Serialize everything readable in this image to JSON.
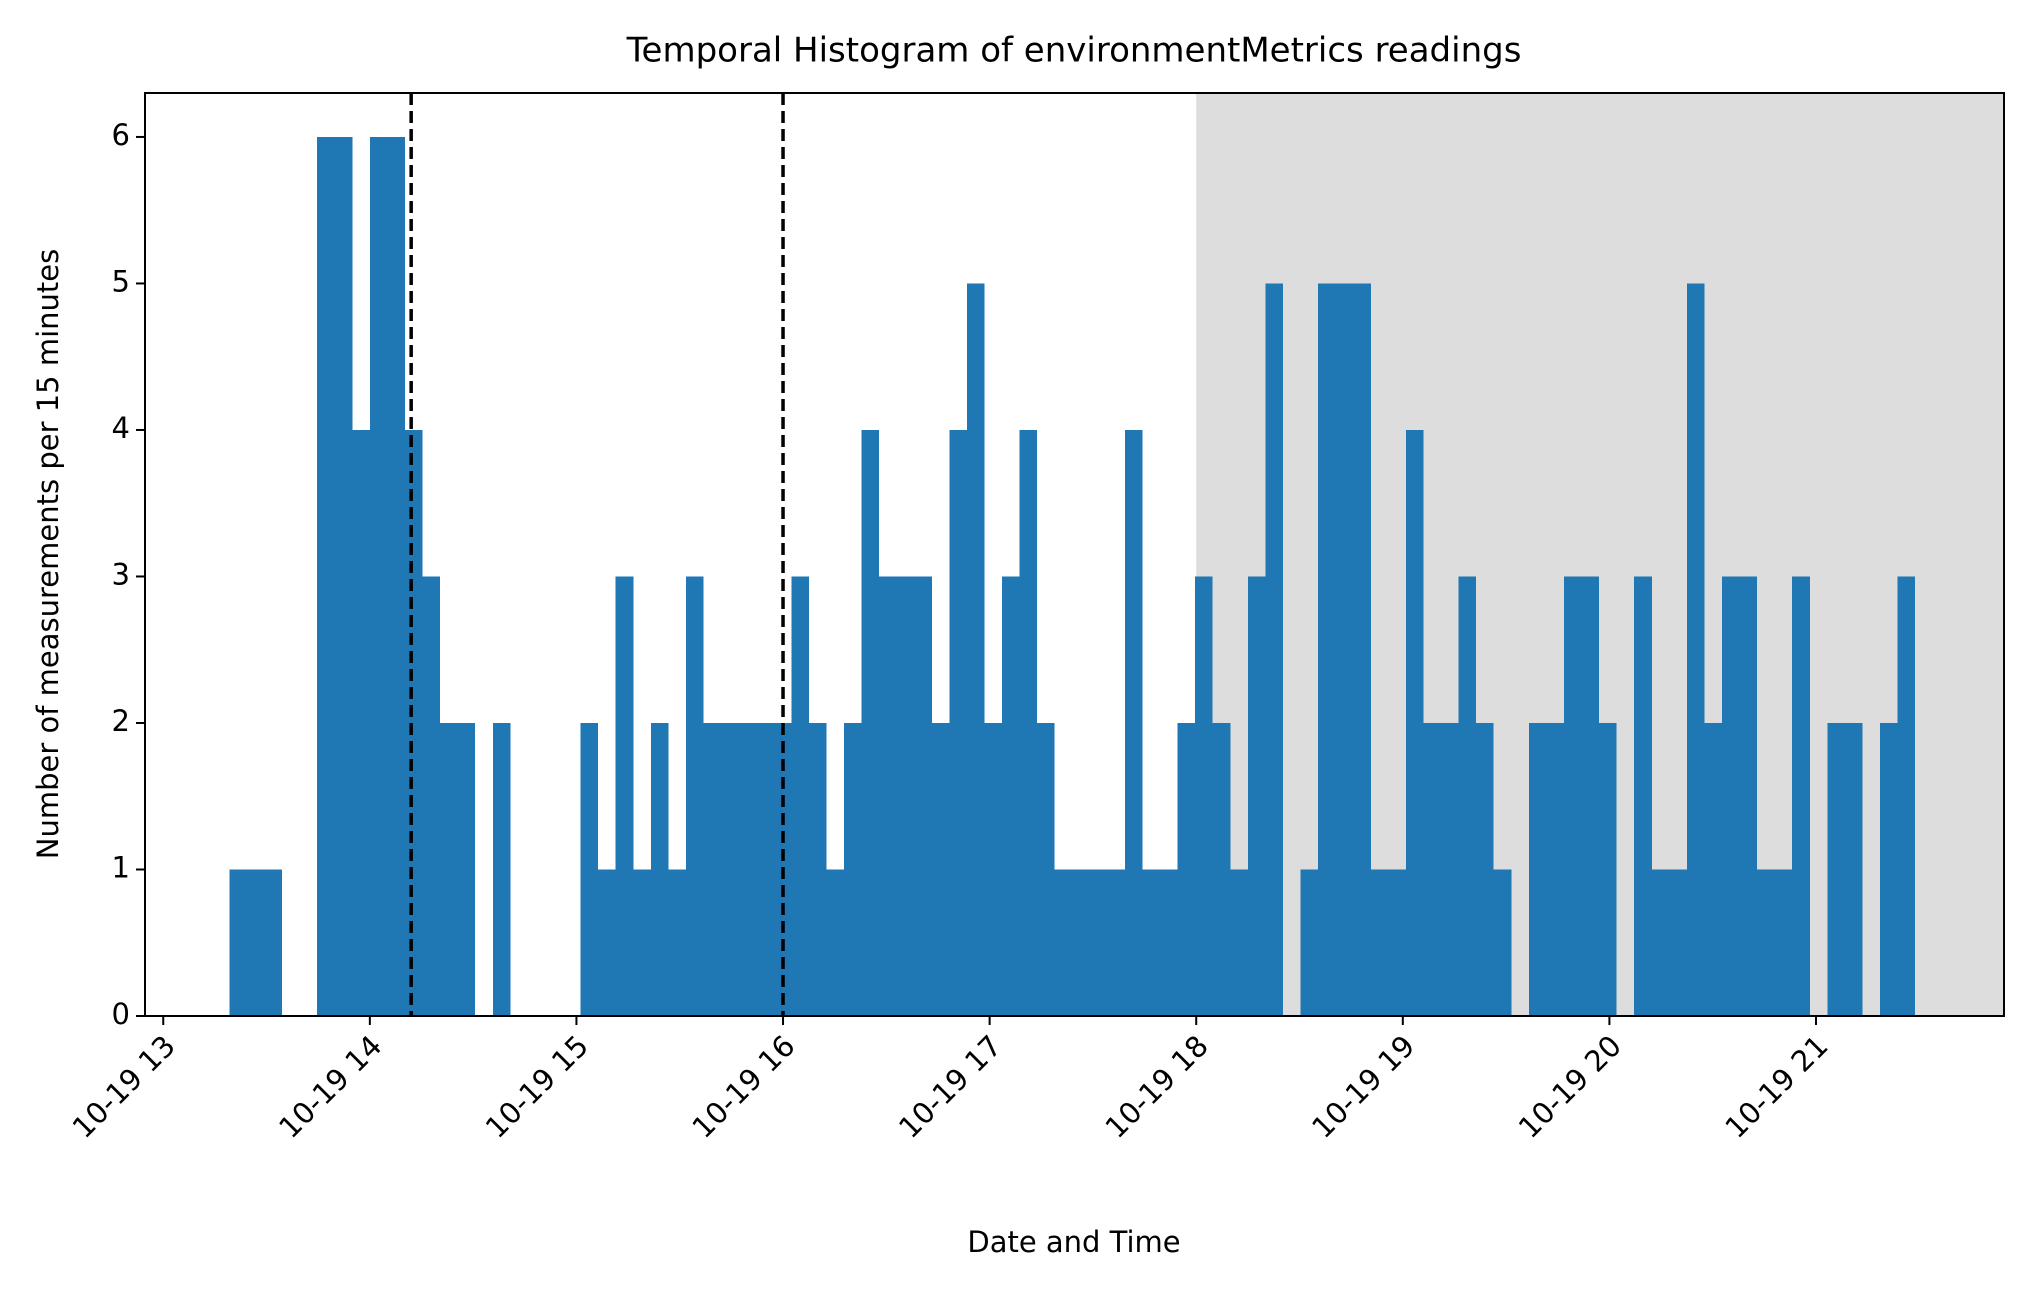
{
  "chart_data": {
    "type": "histogram",
    "title": "Temporal Histogram of environmentMetrics readings",
    "x_label": "Date and Time",
    "y_label": "Number of measurements per 15 minutes",
    "color": "#1f77b4",
    "bins": [
      799.2,
      804.3,
      809.4,
      814.5,
      819.6,
      824.7,
      829.8,
      834.9,
      840,
      845.1,
      850.2,
      855.3,
      860.4,
      865.5,
      870.6,
      875.7,
      880.8,
      885.9,
      891,
      896.1,
      901.2,
      906.3,
      911.4,
      916.5,
      921.6,
      926.7,
      931.8,
      936.9,
      942,
      947.1,
      952.2,
      957.3,
      962.4,
      967.5,
      972.6,
      977.7,
      982.8,
      987.9,
      993,
      998.1,
      1003.2,
      1008.3,
      1013.4,
      1018.5,
      1023.6,
      1028.7,
      1033.8,
      1038.9,
      1044,
      1049.1,
      1054.2,
      1059.3,
      1064.4,
      1069.5,
      1074.6,
      1079.7,
      1084.8,
      1089.9,
      1095,
      1100.1,
      1105.2,
      1110.3,
      1115.4,
      1120.5,
      1125.6,
      1130.7,
      1135.8,
      1140.9,
      1146,
      1151.1,
      1156.2,
      1161.3,
      1166.4,
      1171.5,
      1176.6,
      1181.7,
      1186.8,
      1191.9,
      1197,
      1202.1,
      1207.2,
      1212.3,
      1217.4,
      1222.5,
      1227.6,
      1232.7,
      1237.8,
      1242.9,
      1248,
      1253.1,
      1258.2,
      1263.3,
      1268.4,
      1273.5,
      1278.6,
      1283.7,
      1288.8
    ],
    "values": [
      1,
      1,
      1,
      0,
      0,
      6,
      6,
      4,
      6,
      6,
      4,
      3,
      2,
      2,
      0,
      2,
      0,
      0,
      0,
      0,
      2,
      1,
      3,
      1,
      2,
      1,
      3,
      2,
      2,
      2,
      2,
      2,
      3,
      2,
      1,
      2,
      4,
      3,
      3,
      3,
      2,
      4,
      5,
      2,
      3,
      4,
      2,
      1,
      1,
      1,
      1,
      4,
      1,
      1,
      2,
      3,
      2,
      1,
      3,
      5,
      0,
      1,
      5,
      5,
      5,
      1,
      1,
      4,
      2,
      2,
      3,
      2,
      1,
      0,
      2,
      2,
      3,
      3,
      2,
      0,
      3,
      1,
      1,
      5,
      2,
      3,
      3,
      1,
      1,
      3,
      0,
      2,
      2,
      0,
      2,
      3
    ],
    "xlim": [
      774.7,
      1314.6
    ],
    "xticks": [
      {
        "value": 780,
        "label": "10-19 13"
      },
      {
        "value": 840,
        "label": "10-19 14"
      },
      {
        "value": 900,
        "label": "10-19 15"
      },
      {
        "value": 960,
        "label": "10-19 16"
      },
      {
        "value": 1020,
        "label": "10-19 17"
      },
      {
        "value": 1080,
        "label": "10-19 18"
      },
      {
        "value": 1140,
        "label": "10-19 19"
      },
      {
        "value": 1200,
        "label": "10-19 20"
      },
      {
        "value": 1260,
        "label": "10-19 21"
      }
    ],
    "ylim": [
      0,
      6.3
    ],
    "yticks": [
      0,
      1,
      2,
      3,
      4,
      5,
      6
    ],
    "vlines": [
      852,
      960
    ],
    "vline_color": "#000000",
    "shaded_region": {
      "x0": 1080,
      "color": "#dddddd"
    },
    "grid": false
  }
}
